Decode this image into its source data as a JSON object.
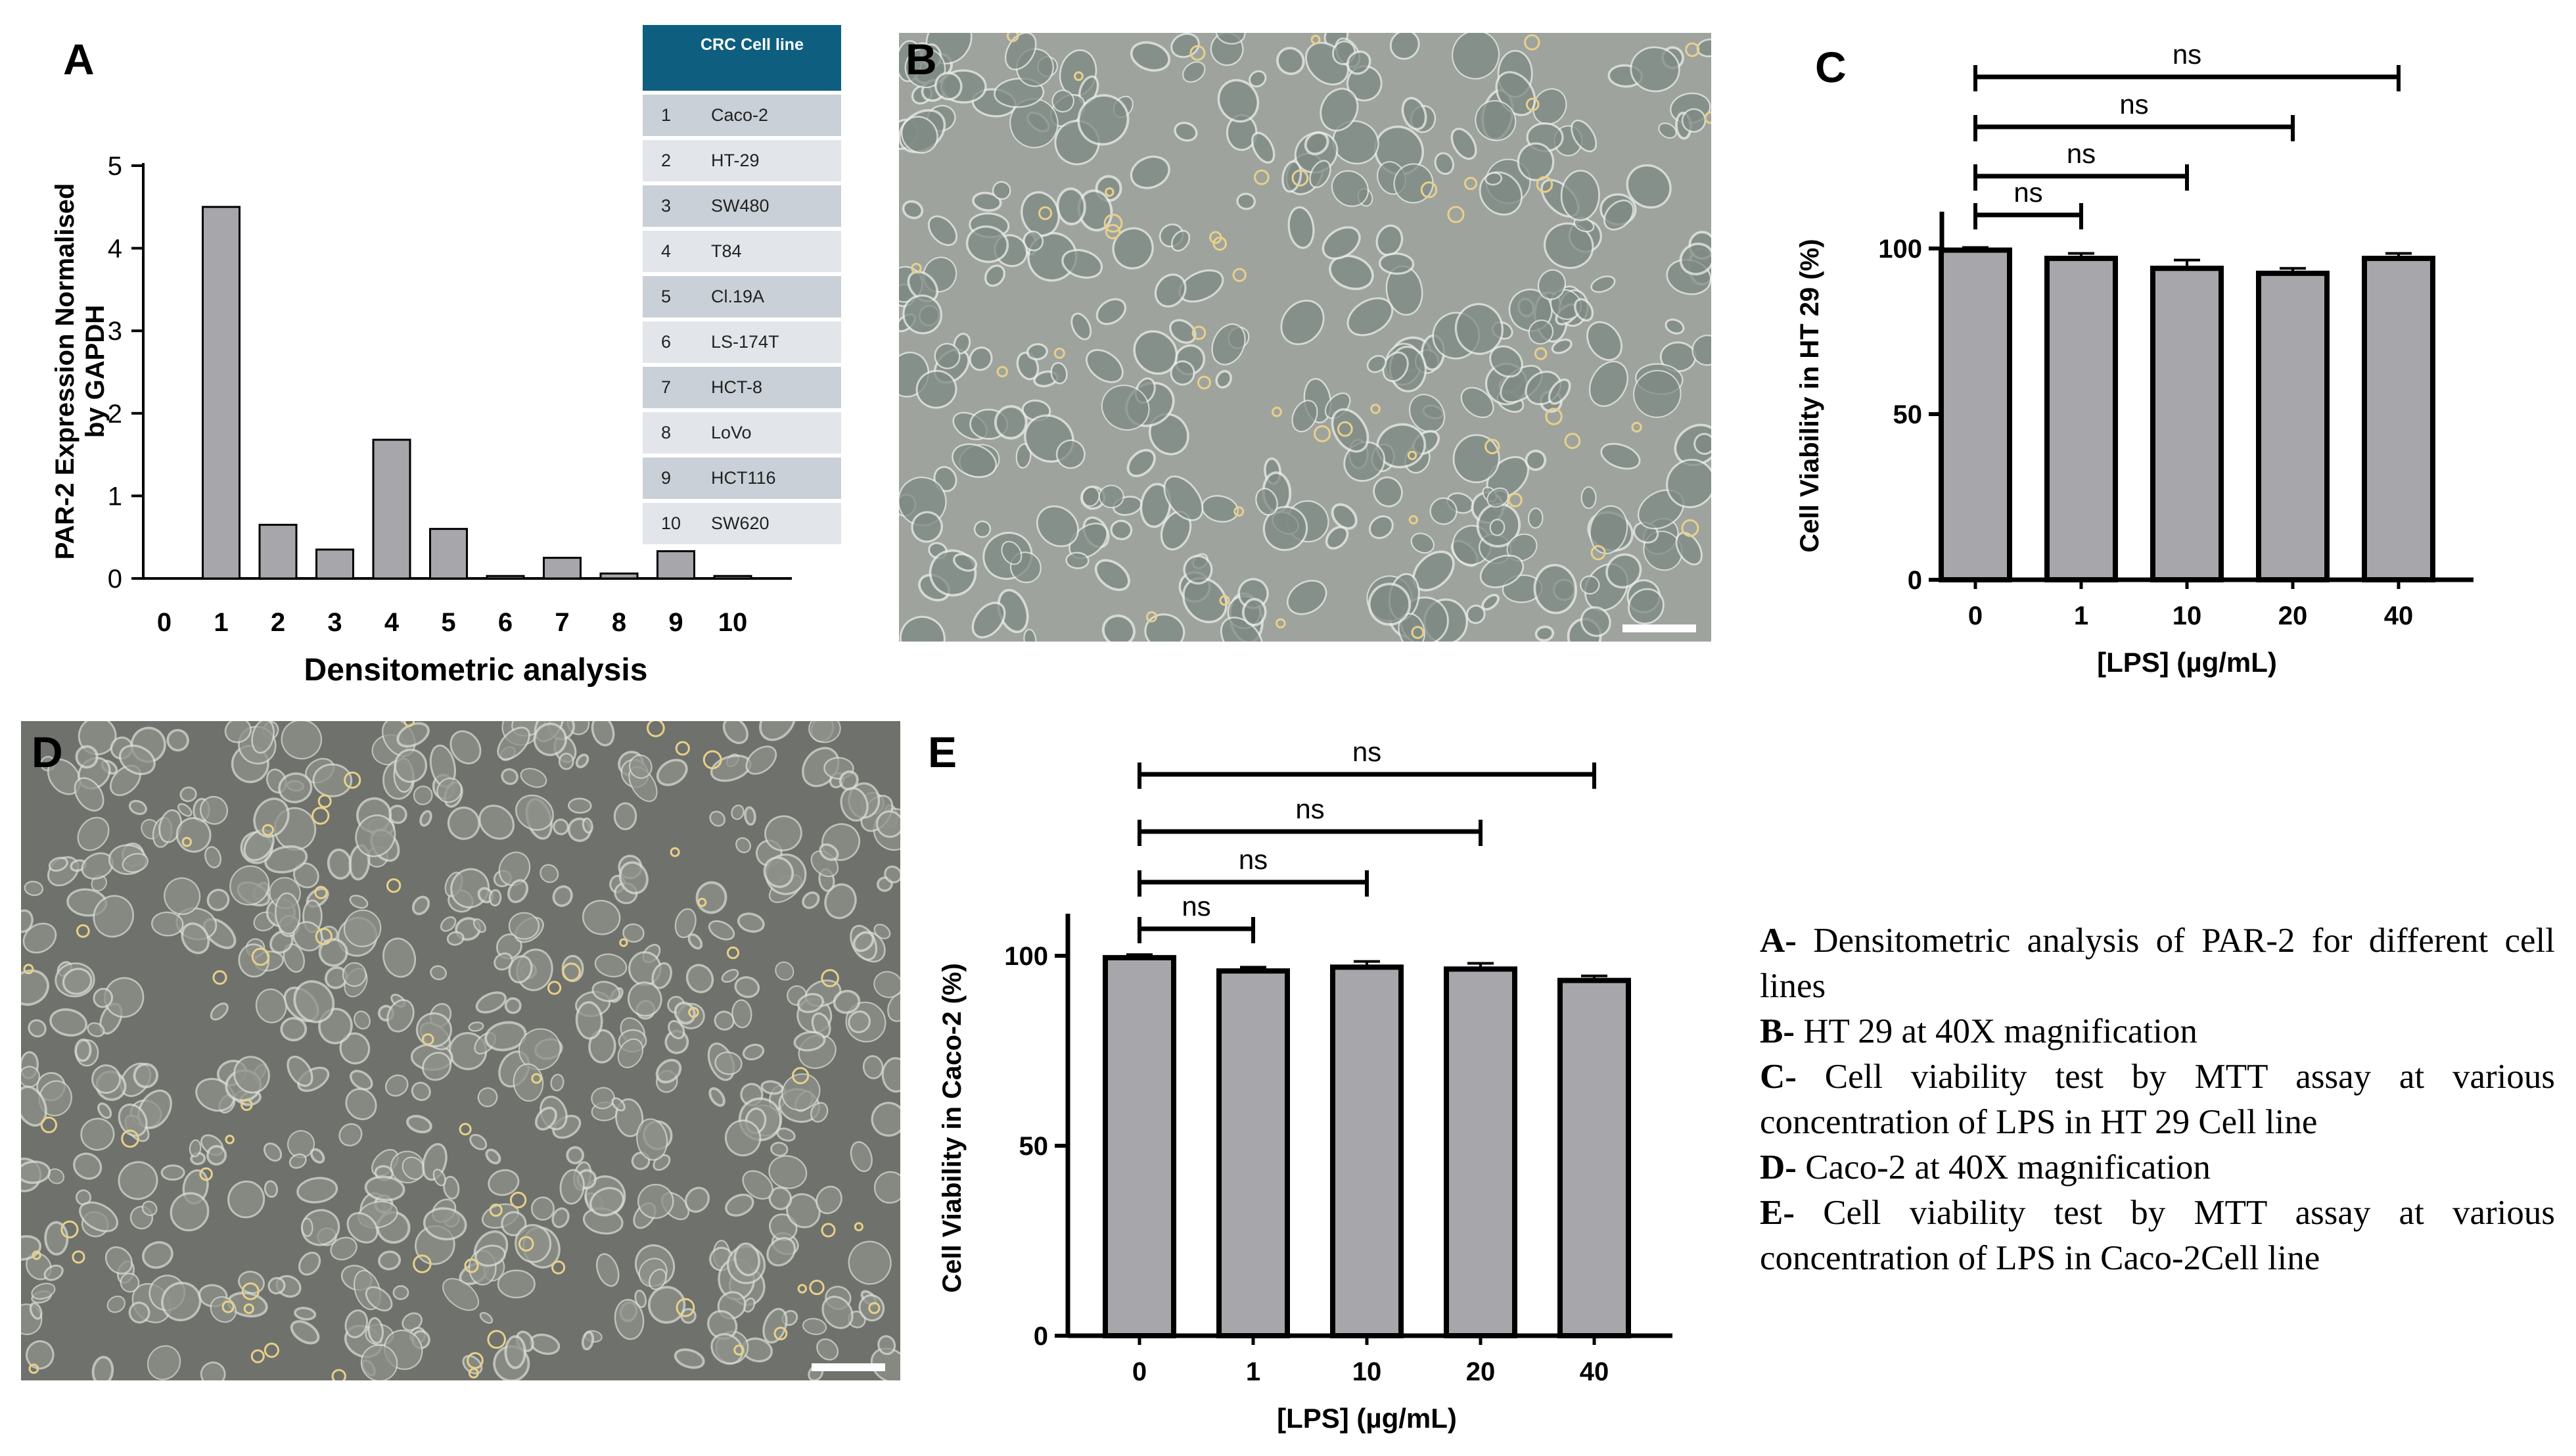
{
  "panels": {
    "a": "A",
    "b": "B",
    "c": "C",
    "d": "D",
    "e": "E"
  },
  "table": {
    "header_num": "",
    "header_name": "CRC Cell line",
    "rows": [
      {
        "num": "1",
        "name": "Caco-2"
      },
      {
        "num": "2",
        "name": "HT-29"
      },
      {
        "num": "3",
        "name": "SW480"
      },
      {
        "num": "4",
        "name": "T84"
      },
      {
        "num": "5",
        "name": "Cl.19A"
      },
      {
        "num": "6",
        "name": "LS-174T"
      },
      {
        "num": "7",
        "name": "HCT-8"
      },
      {
        "num": "8",
        "name": "LoVo"
      },
      {
        "num": "9",
        "name": "HCT116"
      },
      {
        "num": "10",
        "name": "SW620"
      }
    ],
    "colors": {
      "header": "#0e5f7f",
      "odd_row": "#c9d0d7",
      "even_row": "#e2e6ea"
    }
  },
  "chart_data": [
    {
      "id": "A",
      "type": "bar",
      "title": "",
      "xlabel": "Densitometric analysis",
      "ylabel": "PAR-2 Expression Normalised by GAPDH",
      "ylabel_lines": [
        "PAR-2 Expression Normalised",
        "by GAPDH"
      ],
      "x_ticks": [
        "0",
        "1",
        "2",
        "3",
        "4",
        "5",
        "6",
        "7",
        "8",
        "9",
        "10"
      ],
      "categories": [
        "1",
        "2",
        "3",
        "4",
        "5",
        "6",
        "7",
        "8",
        "9",
        "10"
      ],
      "values": [
        4.5,
        0.65,
        0.35,
        1.68,
        0.6,
        0.03,
        0.25,
        0.06,
        0.33,
        0.03
      ],
      "y_ticks": [
        "0",
        "1",
        "2",
        "3",
        "4",
        "5"
      ],
      "ylim": [
        0,
        5
      ],
      "bar_color": "#a7a7ab",
      "legend": "none",
      "grid": false
    },
    {
      "id": "C",
      "type": "bar",
      "title": "",
      "xlabel": "[LPS] (µg/mL)",
      "ylabel": "Cell Viability in HT 29 (%)",
      "categories": [
        "0",
        "1",
        "10",
        "20",
        "40"
      ],
      "values": [
        99.5,
        97.0,
        94.0,
        92.5,
        97.0
      ],
      "errors": [
        0.8,
        1.5,
        2.5,
        1.5,
        1.5
      ],
      "y_ticks": [
        "0",
        "50",
        "100"
      ],
      "ylim": [
        0,
        110
      ],
      "bar_color": "#a7a7ab",
      "significance": [
        {
          "from": "0",
          "to": "1",
          "label": "ns"
        },
        {
          "from": "0",
          "to": "10",
          "label": "ns"
        },
        {
          "from": "0",
          "to": "20",
          "label": "ns"
        },
        {
          "from": "0",
          "to": "40",
          "label": "ns"
        }
      ],
      "legend": "none",
      "grid": false
    },
    {
      "id": "E",
      "type": "bar",
      "title": "",
      "xlabel": "[LPS] (µg/mL)",
      "ylabel": "Cell Viability in Caco-2 (%)",
      "categories": [
        "0",
        "1",
        "10",
        "20",
        "40"
      ],
      "values": [
        99.5,
        96.0,
        97.0,
        96.5,
        93.5
      ],
      "errors": [
        0.8,
        1.0,
        1.5,
        1.5,
        1.2
      ],
      "y_ticks": [
        "0",
        "50",
        "100"
      ],
      "ylim": [
        0,
        115
      ],
      "bar_color": "#a7a7ab",
      "significance": [
        {
          "from": "0",
          "to": "1",
          "label": "ns"
        },
        {
          "from": "0",
          "to": "10",
          "label": "ns"
        },
        {
          "from": "0",
          "to": "20",
          "label": "ns"
        },
        {
          "from": "0",
          "to": "40",
          "label": "ns"
        }
      ],
      "legend": "none",
      "grid": false
    }
  ],
  "caption": [
    {
      "key": "A-",
      "text": "Densitometric analysis of PAR-2 for different cell lines"
    },
    {
      "key": "B-",
      "text": "HT 29 at 40X magnification"
    },
    {
      "key": "C-",
      "text": "Cell viability test by MTT assay at various concentration of LPS in HT 29 Cell line"
    },
    {
      "key": "D-",
      "text": "Caco-2 at 40X magnification"
    },
    {
      "key": "E-",
      "text": "Cell viability test by MTT assay at various concentration of LPS in Caco-2Cell line"
    }
  ],
  "micrographs": {
    "b": {
      "background": "#9ea39e",
      "cell_color": "#7f8a85"
    },
    "d": {
      "background": "#6f716c",
      "cell_color": "#8d918a"
    }
  }
}
